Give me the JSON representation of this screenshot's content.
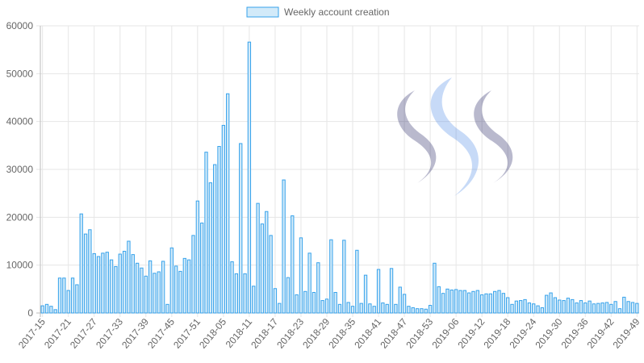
{
  "chart_data": {
    "type": "bar",
    "title": "",
    "xlabel": "",
    "ylabel": "",
    "ylim": [
      0,
      60000
    ],
    "yticks": [
      0,
      10000,
      20000,
      30000,
      40000,
      50000,
      60000
    ],
    "x_tick_labels": [
      "2017-15",
      "2017-21",
      "2017-27",
      "2017-33",
      "2017-39",
      "2017-45",
      "2017-51",
      "2018-05",
      "2018-11",
      "2018-17",
      "2018-23",
      "2018-29",
      "2018-35",
      "2018-41",
      "2018-47",
      "2018-53",
      "2019-06",
      "2019-12",
      "2019-18",
      "2019-24",
      "2019-30",
      "2019-36",
      "2019-42",
      "2019-49"
    ],
    "legend": {
      "position": "top",
      "label": "Weekly account creation"
    },
    "grid": true,
    "series": [
      {
        "name": "Weekly account creation",
        "color_fill": "#d2eaf9",
        "color_border": "#36a2eb",
        "values": [
          1500,
          1800,
          1400,
          700,
          7300,
          7300,
          4700,
          7300,
          5900,
          20700,
          16500,
          17400,
          12400,
          11800,
          12500,
          12700,
          11100,
          9700,
          12300,
          12900,
          15000,
          12200,
          10400,
          9400,
          7700,
          10900,
          8300,
          8600,
          10800,
          1800,
          13600,
          9800,
          8700,
          11400,
          11100,
          16200,
          23400,
          18800,
          33600,
          27200,
          31000,
          34800,
          39200,
          45800,
          10700,
          8200,
          35400,
          8200,
          56600,
          5600,
          22900,
          18600,
          21200,
          16200,
          5100,
          2000,
          27800,
          7400,
          20300,
          3800,
          15700,
          4500,
          12500,
          4300,
          10500,
          2600,
          2900,
          15300,
          4300,
          1800,
          15200,
          2200,
          1400,
          13100,
          2000,
          7900,
          1900,
          1400,
          9100,
          2100,
          1800,
          9300,
          1800,
          5400,
          3900,
          1400,
          1100,
          900,
          900,
          800,
          1600,
          10400,
          5500,
          4100,
          5000,
          4800,
          4900,
          4700,
          4700,
          4200,
          4500,
          4700,
          3800,
          4000,
          4000,
          4500,
          4700,
          4100,
          3200,
          1800,
          2500,
          2600,
          2800,
          2100,
          1900,
          1500,
          1100,
          3700,
          4200,
          3200,
          2700,
          2600,
          3100,
          2800,
          2100,
          2600,
          2100,
          2500,
          1900,
          2000,
          2100,
          2200,
          1800,
          2400,
          900,
          3300,
          2400,
          2200,
          2000
        ]
      }
    ]
  }
}
